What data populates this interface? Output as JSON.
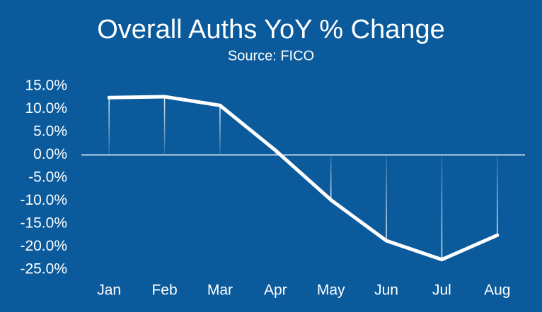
{
  "chart_data": {
    "type": "line",
    "title": "Overall Auths YoY % Change",
    "subtitle": "Source: FICO",
    "categories": [
      "Jan",
      "Feb",
      "Mar",
      "Apr",
      "May",
      "Jun",
      "Jul",
      "Aug"
    ],
    "values": [
      12.5,
      12.7,
      10.8,
      1.0,
      -9.8,
      -18.7,
      -22.8,
      -17.5
    ],
    "color": "#ffffff",
    "ylim": [
      -25,
      15
    ],
    "yticks": [
      {
        "value": 15,
        "label": "15.0%"
      },
      {
        "value": 10,
        "label": "10.0%"
      },
      {
        "value": 5,
        "label": "5.0%"
      },
      {
        "value": 0,
        "label": "0.0%"
      },
      {
        "value": -5,
        "label": "-5.0%"
      },
      {
        "value": -10,
        "label": "-10.0%"
      },
      {
        "value": -15,
        "label": "-15.0%"
      },
      {
        "value": -20,
        "label": "-20.0%"
      },
      {
        "value": -25,
        "label": "-25.0%"
      }
    ]
  }
}
